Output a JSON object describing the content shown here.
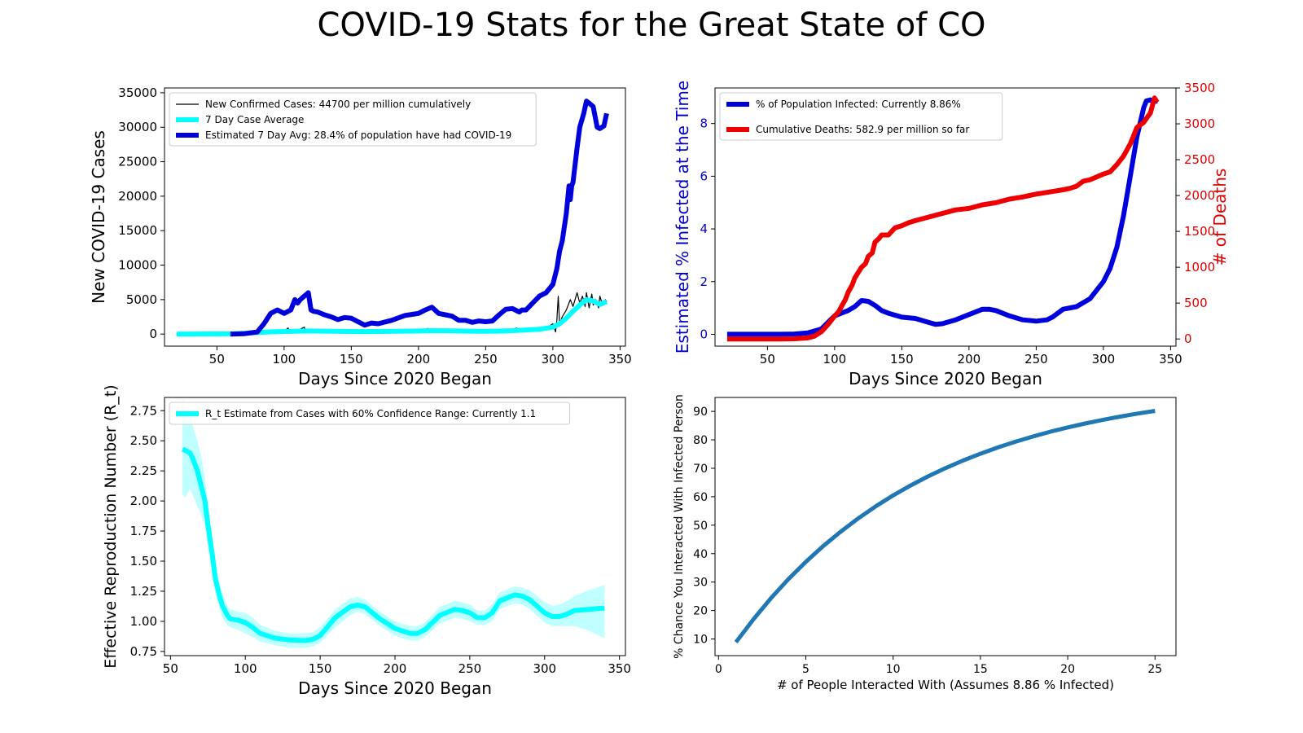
{
  "suptitle": "COVID-19 Stats for the Great State of CO",
  "chart_data": [
    {
      "id": "cases",
      "type": "line",
      "xlabel": "Days Since 2020 Began",
      "ylabel": "New COVID-19 Cases",
      "xlim": [
        11,
        354
      ],
      "ylim": [
        -1750,
        35700
      ],
      "xticks": [
        50,
        100,
        150,
        200,
        250,
        300,
        350
      ],
      "yticks": [
        0,
        5000,
        10000,
        15000,
        20000,
        25000,
        30000,
        35000
      ],
      "legend_position": "upper-left",
      "series": [
        {
          "name": "New Confirmed Cases: 44700 per million cumulatively",
          "color": "#000000",
          "width": 1.2,
          "x": [
            20,
            60,
            70,
            80,
            90,
            100,
            103,
            104,
            105,
            110,
            115,
            116,
            117,
            120,
            130,
            140,
            150,
            160,
            170,
            180,
            190,
            200,
            207,
            208,
            209,
            210,
            220,
            230,
            240,
            250,
            260,
            270,
            273,
            274,
            275,
            280,
            290,
            295,
            297,
            300,
            302,
            303,
            304,
            305,
            307,
            310,
            313,
            315,
            318,
            320,
            322,
            324,
            325,
            327,
            329,
            330,
            332,
            334,
            335,
            337,
            339,
            340
          ],
          "y": [
            0,
            50,
            200,
            300,
            350,
            400,
            900,
            300,
            450,
            500,
            1000,
            400,
            500,
            500,
            450,
            420,
            430,
            400,
            420,
            450,
            500,
            520,
            800,
            400,
            550,
            550,
            500,
            480,
            450,
            400,
            450,
            500,
            900,
            300,
            500,
            550,
            700,
            800,
            1100,
            1500,
            300,
            2000,
            5500,
            1500,
            2500,
            3500,
            5000,
            4000,
            6000,
            4500,
            5500,
            4000,
            6000,
            3800,
            5800,
            4200,
            5000,
            3800,
            5500,
            4200,
            5000,
            4700
          ]
        },
        {
          "name": "7 Day Case Average",
          "color": "#00ffff",
          "width": 6,
          "x": [
            20,
            60,
            70,
            80,
            90,
            100,
            110,
            120,
            130,
            140,
            150,
            160,
            170,
            180,
            190,
            200,
            210,
            220,
            230,
            240,
            250,
            260,
            270,
            280,
            290,
            300,
            305,
            310,
            315,
            320,
            325,
            330,
            335,
            340
          ],
          "y": [
            0,
            30,
            120,
            220,
            320,
            380,
            420,
            450,
            420,
            400,
            380,
            360,
            380,
            400,
            420,
            450,
            500,
            480,
            450,
            420,
            400,
            430,
            500,
            600,
            700,
            1000,
            1500,
            2300,
            3300,
            4200,
            5000,
            4800,
            4300,
            4700
          ]
        },
        {
          "name": "Estimated 7 Day Avg: 28.4% of population have had COVID-19",
          "color": "#0000dd",
          "width": 6,
          "x": [
            60,
            70,
            80,
            85,
            90,
            95,
            100,
            105,
            108,
            110,
            112,
            115,
            118,
            120,
            122,
            125,
            130,
            135,
            140,
            145,
            150,
            155,
            160,
            165,
            170,
            180,
            190,
            200,
            205,
            210,
            215,
            220,
            225,
            230,
            235,
            240,
            245,
            250,
            255,
            260,
            265,
            270,
            275,
            277,
            280,
            285,
            290,
            295,
            300,
            303,
            305,
            307,
            310,
            312,
            313,
            314,
            315,
            318,
            320,
            323,
            325,
            327,
            330,
            333,
            335,
            338,
            340
          ],
          "y": [
            0,
            50,
            300,
            1500,
            3000,
            3500,
            3000,
            3500,
            5000,
            4500,
            5000,
            5500,
            6000,
            3500,
            3300,
            3200,
            2800,
            2500,
            2100,
            2400,
            2300,
            1800,
            1300,
            1600,
            1500,
            2000,
            2700,
            3000,
            3500,
            3900,
            3000,
            2800,
            2600,
            2000,
            2000,
            1700,
            1900,
            1800,
            1900,
            2800,
            3600,
            3700,
            3200,
            3500,
            3500,
            4500,
            5500,
            6000,
            7200,
            9500,
            12000,
            13500,
            17500,
            21500,
            19500,
            21500,
            22000,
            27000,
            30000,
            32000,
            33800,
            33500,
            33000,
            30000,
            29800,
            30200,
            32000
          ]
        }
      ]
    },
    {
      "id": "infected",
      "type": "line",
      "xlabel": "Days Since 2020 Began",
      "ylabel": "Estimated % Infected at the Time",
      "ylabel_right": "# of Deaths",
      "xlim": [
        11,
        354
      ],
      "ylim": [
        -0.45,
        9.35
      ],
      "ylim_right": [
        -100,
        3500
      ],
      "xticks": [
        50,
        100,
        150,
        200,
        250,
        300,
        350
      ],
      "yticks": [
        0,
        2,
        4,
        6,
        8
      ],
      "yticks_right": [
        0,
        500,
        1000,
        1500,
        2000,
        2500,
        3000,
        3500
      ],
      "colors": {
        "left_axis": "#0000cc",
        "right_axis": "#dd0000"
      },
      "legend_position": "upper-left",
      "series": [
        {
          "name": "% of Population Infected: Currently 8.86%",
          "color": "#0000dd",
          "width": 6,
          "axis": "left",
          "x": [
            20,
            60,
            70,
            80,
            90,
            95,
            100,
            105,
            110,
            115,
            120,
            125,
            130,
            135,
            140,
            150,
            160,
            170,
            175,
            180,
            190,
            200,
            210,
            215,
            220,
            230,
            240,
            250,
            258,
            262,
            270,
            280,
            290,
            300,
            305,
            310,
            315,
            320,
            325,
            330,
            332,
            335,
            337,
            340
          ],
          "y": [
            0,
            0,
            0.01,
            0.05,
            0.2,
            0.45,
            0.7,
            0.8,
            0.9,
            1.05,
            1.28,
            1.25,
            1.1,
            0.9,
            0.8,
            0.65,
            0.6,
            0.45,
            0.38,
            0.4,
            0.55,
            0.75,
            0.95,
            0.95,
            0.9,
            0.7,
            0.55,
            0.5,
            0.55,
            0.65,
            0.95,
            1.05,
            1.35,
            2.0,
            2.5,
            3.3,
            4.5,
            6.0,
            7.5,
            8.6,
            8.86,
            8.9,
            8.82,
            8.86
          ]
        },
        {
          "name": "Cumulative Deaths: 582.9 per million so far",
          "color": "#ee0000",
          "width": 6,
          "axis": "right",
          "x": [
            20,
            60,
            70,
            80,
            85,
            90,
            95,
            100,
            103,
            105,
            108,
            110,
            113,
            115,
            120,
            123,
            125,
            128,
            130,
            133,
            135,
            140,
            145,
            150,
            155,
            160,
            170,
            180,
            190,
            200,
            210,
            220,
            230,
            240,
            250,
            260,
            270,
            275,
            280,
            285,
            290,
            295,
            300,
            305,
            310,
            315,
            320,
            325,
            330,
            333,
            335,
            338,
            340
          ],
          "y": [
            0,
            0,
            2,
            15,
            40,
            100,
            200,
            320,
            380,
            450,
            550,
            650,
            750,
            850,
            1000,
            1050,
            1150,
            1200,
            1350,
            1400,
            1450,
            1450,
            1550,
            1580,
            1620,
            1650,
            1700,
            1750,
            1800,
            1820,
            1870,
            1900,
            1950,
            1980,
            2020,
            2050,
            2080,
            2100,
            2130,
            2200,
            2220,
            2260,
            2300,
            2330,
            2430,
            2550,
            2720,
            2950,
            3020,
            3100,
            3150,
            3360,
            3300
          ]
        }
      ]
    },
    {
      "id": "rt",
      "type": "line",
      "xlabel": "Days Since 2020 Began",
      "ylabel": "Effective Reproduction Number (R_t)",
      "xlim": [
        46,
        354
      ],
      "ylim": [
        0.715,
        2.86
      ],
      "xticks": [
        50,
        100,
        150,
        200,
        250,
        300,
        350
      ],
      "yticks": [
        0.75,
        1.0,
        1.25,
        1.5,
        1.75,
        2.0,
        2.25,
        2.5,
        2.75
      ],
      "legend_position": "upper-left",
      "series": [
        {
          "name": "R_t Estimate from Cases with 60% Confidence Range: Currently 1.1",
          "color": "#00ffff",
          "width": 6,
          "x": [
            58,
            60,
            63,
            65,
            68,
            70,
            73,
            75,
            78,
            80,
            83,
            85,
            88,
            90,
            95,
            100,
            105,
            110,
            120,
            130,
            140,
            145,
            150,
            160,
            170,
            175,
            180,
            190,
            200,
            210,
            215,
            220,
            230,
            240,
            245,
            250,
            255,
            260,
            265,
            270,
            280,
            285,
            290,
            300,
            305,
            310,
            315,
            320,
            330,
            340
          ],
          "y": [
            2.43,
            2.42,
            2.4,
            2.35,
            2.25,
            2.15,
            2.0,
            1.8,
            1.55,
            1.35,
            1.2,
            1.12,
            1.05,
            1.02,
            1.01,
            0.99,
            0.95,
            0.9,
            0.86,
            0.845,
            0.84,
            0.85,
            0.88,
            1.03,
            1.12,
            1.135,
            1.12,
            1.02,
            0.94,
            0.9,
            0.9,
            0.93,
            1.05,
            1.1,
            1.09,
            1.07,
            1.03,
            1.03,
            1.07,
            1.17,
            1.22,
            1.21,
            1.18,
            1.07,
            1.04,
            1.04,
            1.06,
            1.09,
            1.1,
            1.11
          ],
          "band_low": [
            2.05,
            2.03,
            2.1,
            2.05,
            1.95,
            1.9,
            1.8,
            1.6,
            1.4,
            1.22,
            1.1,
            1.02,
            0.97,
            0.95,
            0.93,
            0.9,
            0.87,
            0.83,
            0.8,
            0.78,
            0.78,
            0.79,
            0.82,
            0.95,
            1.05,
            1.08,
            1.06,
            0.96,
            0.88,
            0.84,
            0.84,
            0.87,
            0.98,
            1.03,
            1.02,
            1.0,
            0.97,
            0.97,
            1.0,
            1.1,
            1.15,
            1.14,
            1.1,
            0.99,
            0.96,
            0.96,
            0.96,
            0.96,
            0.92,
            0.86
          ],
          "band_high": [
            2.85,
            2.7,
            2.7,
            2.62,
            2.5,
            2.4,
            2.2,
            1.98,
            1.7,
            1.48,
            1.3,
            1.22,
            1.13,
            1.1,
            1.08,
            1.07,
            1.03,
            0.97,
            0.92,
            0.9,
            0.9,
            0.91,
            0.95,
            1.1,
            1.19,
            1.2,
            1.18,
            1.08,
            1.0,
            0.96,
            0.96,
            0.99,
            1.12,
            1.17,
            1.16,
            1.14,
            1.09,
            1.09,
            1.14,
            1.24,
            1.29,
            1.28,
            1.26,
            1.16,
            1.13,
            1.14,
            1.17,
            1.21,
            1.26,
            1.3
          ]
        }
      ]
    },
    {
      "id": "chance",
      "type": "line",
      "xlabel": "# of People Interacted With (Assumes 8.86 % Infected)",
      "ylabel": "% Chance You Interacted With Infected Person",
      "xlim": [
        -0.2,
        26.2
      ],
      "ylim": [
        4.15,
        94.9
      ],
      "xticks": [
        0,
        5,
        10,
        15,
        20,
        25
      ],
      "yticks": [
        10,
        20,
        30,
        40,
        50,
        60,
        70,
        80,
        90
      ],
      "series": [
        {
          "color": "#1f77b4",
          "width": 5,
          "x": [
            1,
            2,
            3,
            4,
            5,
            6,
            7,
            8,
            9,
            10,
            11,
            12,
            13,
            14,
            15,
            16,
            17,
            18,
            19,
            20,
            21,
            22,
            23,
            24,
            25
          ],
          "y": [
            8.86,
            16.93,
            24.29,
            31.0,
            37.11,
            42.68,
            47.76,
            52.39,
            56.61,
            60.45,
            63.96,
            67.15,
            70.06,
            72.71,
            75.13,
            77.33,
            79.34,
            81.17,
            82.84,
            84.36,
            85.75,
            87.01,
            88.17,
            89.22,
            90.17
          ]
        }
      ]
    }
  ]
}
